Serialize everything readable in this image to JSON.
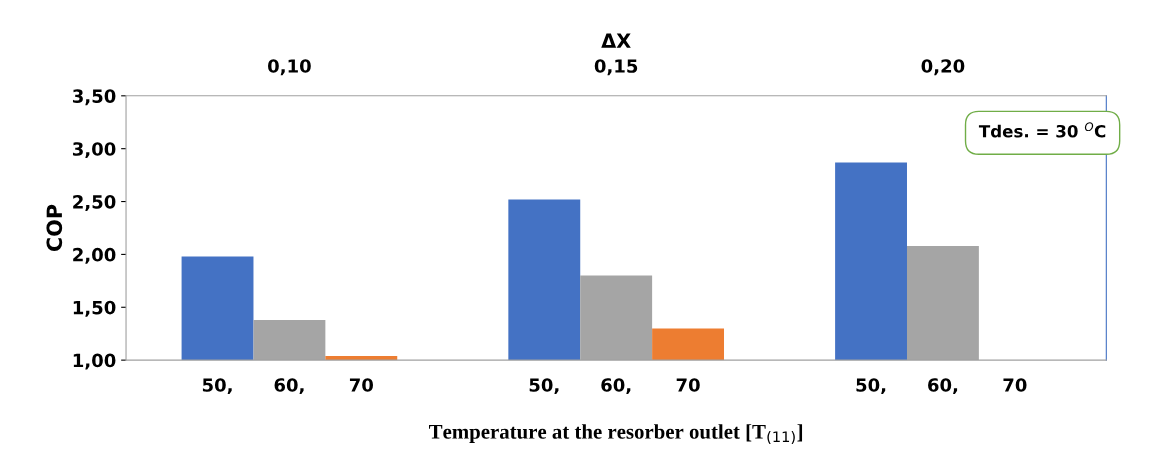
{
  "chart_data": {
    "type": "bar",
    "categories": [
      "0,10",
      "0,15",
      "0,20"
    ],
    "x2label": "ΔX",
    "xlabel": "Temperature at the resorber outlet [T$_{(11)}$]",
    "ylabel": "COP",
    "series": [
      {
        "name": "50,",
        "color": "#4472c4",
        "values": [
          1.98,
          2.52,
          2.87
        ]
      },
      {
        "name": "60,",
        "color": "#a5a5a5",
        "values": [
          1.38,
          1.8,
          2.08
        ]
      },
      {
        "name": "70",
        "color": "#ed7d31",
        "values": [
          1.04,
          1.3,
          null
        ]
      }
    ],
    "ylim": [
      1.0,
      3.5
    ],
    "yticks": [
      {
        "value": 1.0,
        "label": "1,00"
      },
      {
        "value": 1.5,
        "label": "1,50"
      },
      {
        "value": 2.0,
        "label": "2,00"
      },
      {
        "value": 2.5,
        "label": "2,50"
      },
      {
        "value": 3.0,
        "label": "3,00"
      },
      {
        "value": 3.5,
        "label": "3,50"
      }
    ],
    "annotations": [
      "Tdes. = 30 $^{O}$C"
    ],
    "grid": false,
    "legend": false
  }
}
